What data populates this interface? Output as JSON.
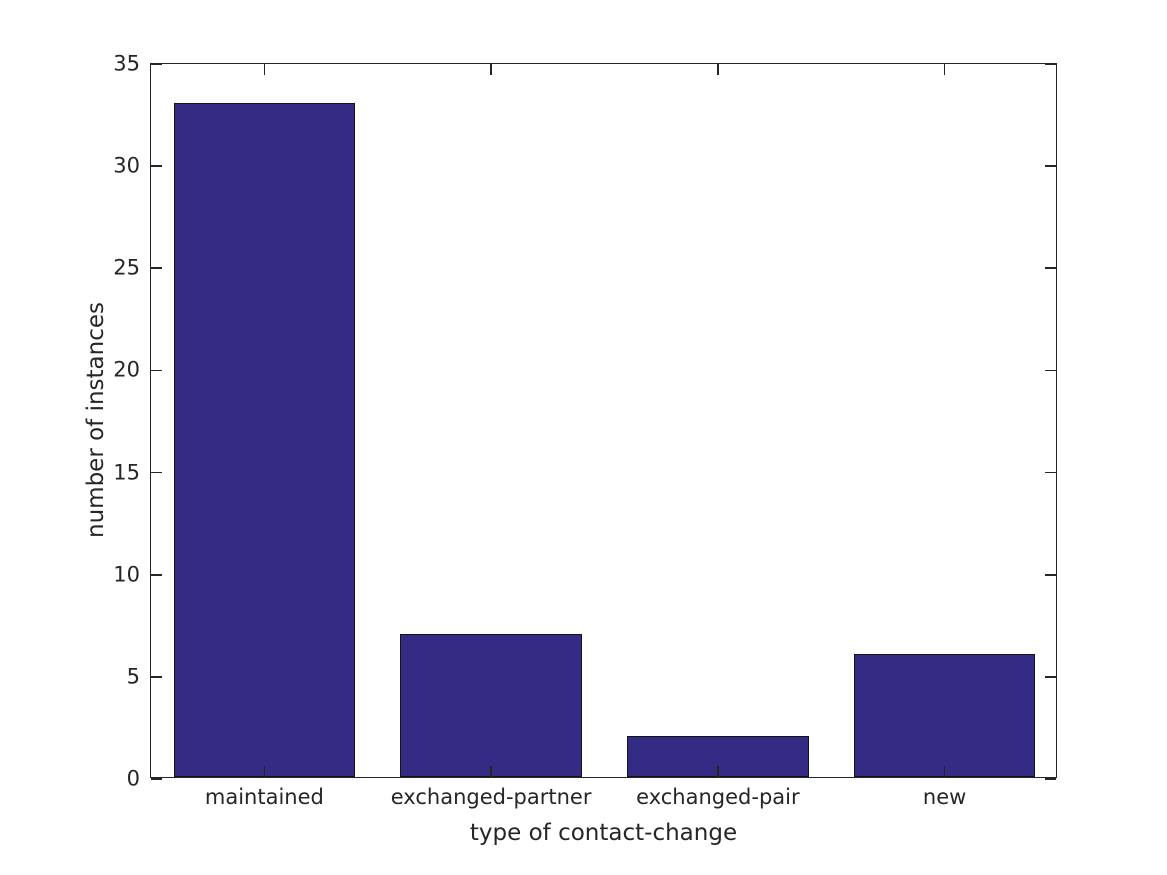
{
  "chart_data": {
    "type": "bar",
    "title": "",
    "categories": [
      "maintained",
      "exchanged-partner",
      "exchanged-pair",
      "new"
    ],
    "values": [
      33,
      7,
      2,
      6
    ],
    "xlabel": "type of contact-change",
    "ylabel": "number of instances",
    "ylim": [
      0,
      35
    ],
    "yticks": [
      0,
      5,
      10,
      15,
      20,
      25,
      30,
      35
    ],
    "bar_width_fraction": 0.8,
    "grid": false,
    "legend_position": "none",
    "tick_style": "inward, mirrored on top and right spines (boxed axes)",
    "colors": {
      "bar_fill": "#342B85",
      "bar_edge": "#141414",
      "axis": "#262626",
      "text": "#262626",
      "background": "#ffffff"
    }
  }
}
